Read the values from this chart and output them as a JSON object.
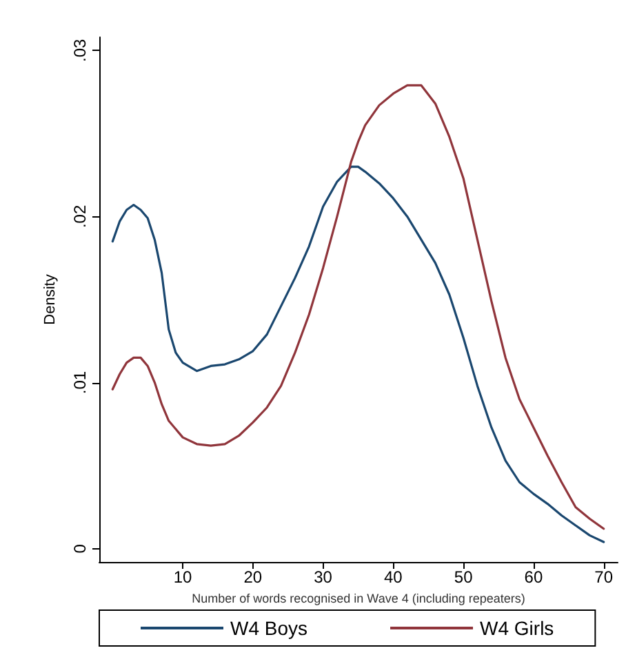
{
  "chart_data": {
    "type": "line",
    "xlabel": "Number of words recognised in Wave 4 (including repeaters)",
    "ylabel": "Density",
    "x": [
      0,
      1,
      2,
      3,
      4,
      5,
      6,
      7,
      8,
      9,
      10,
      12,
      14,
      16,
      18,
      20,
      22,
      24,
      26,
      28,
      30,
      32,
      34,
      35,
      36,
      38,
      40,
      42,
      44,
      46,
      48,
      50,
      52,
      54,
      56,
      58,
      60,
      62,
      64,
      66,
      68,
      70
    ],
    "series": [
      {
        "name": "W4 Boys",
        "color": "#1a476f",
        "values": [
          0.0185,
          0.0197,
          0.0204,
          0.0207,
          0.0204,
          0.0199,
          0.0186,
          0.0166,
          0.0132,
          0.0118,
          0.0112,
          0.0107,
          0.011,
          0.0111,
          0.0114,
          0.0119,
          0.0129,
          0.0146,
          0.0163,
          0.0182,
          0.0206,
          0.0221,
          0.023,
          0.023,
          0.0227,
          0.022,
          0.0211,
          0.02,
          0.0186,
          0.0172,
          0.0153,
          0.0127,
          0.0098,
          0.0073,
          0.0053,
          0.004,
          0.0033,
          0.0027,
          0.002,
          0.0014,
          0.0008,
          0.0004
        ]
      },
      {
        "name": "W4 Girls",
        "color": "#90353b",
        "values": [
          0.0096,
          0.0105,
          0.0112,
          0.0115,
          0.0115,
          0.011,
          0.01,
          0.0087,
          0.0077,
          0.0072,
          0.0067,
          0.0063,
          0.0062,
          0.0063,
          0.0068,
          0.0076,
          0.0085,
          0.0098,
          0.0118,
          0.0141,
          0.0169,
          0.02,
          0.0233,
          0.0245,
          0.0255,
          0.0267,
          0.0274,
          0.0279,
          0.0279,
          0.0268,
          0.0248,
          0.0223,
          0.0186,
          0.0149,
          0.0115,
          0.009,
          0.0073,
          0.0056,
          0.004,
          0.0025,
          0.0018,
          0.0012
        ]
      }
    ],
    "xlim": [
      -1.9,
      72
    ],
    "xticks": [
      10,
      20,
      30,
      40,
      50,
      60,
      70
    ],
    "ylim": [
      -0.0008,
      0.0308
    ],
    "yticks": [
      {
        "value": 0,
        "label": "0"
      },
      {
        "value": 0.01,
        "label": ".01"
      },
      {
        "value": 0.02,
        "label": ".02"
      },
      {
        "value": 0.03,
        "label": ".03"
      }
    ],
    "grid": false,
    "legend": "bottom",
    "marker": "none",
    "line_style": "solid"
  }
}
